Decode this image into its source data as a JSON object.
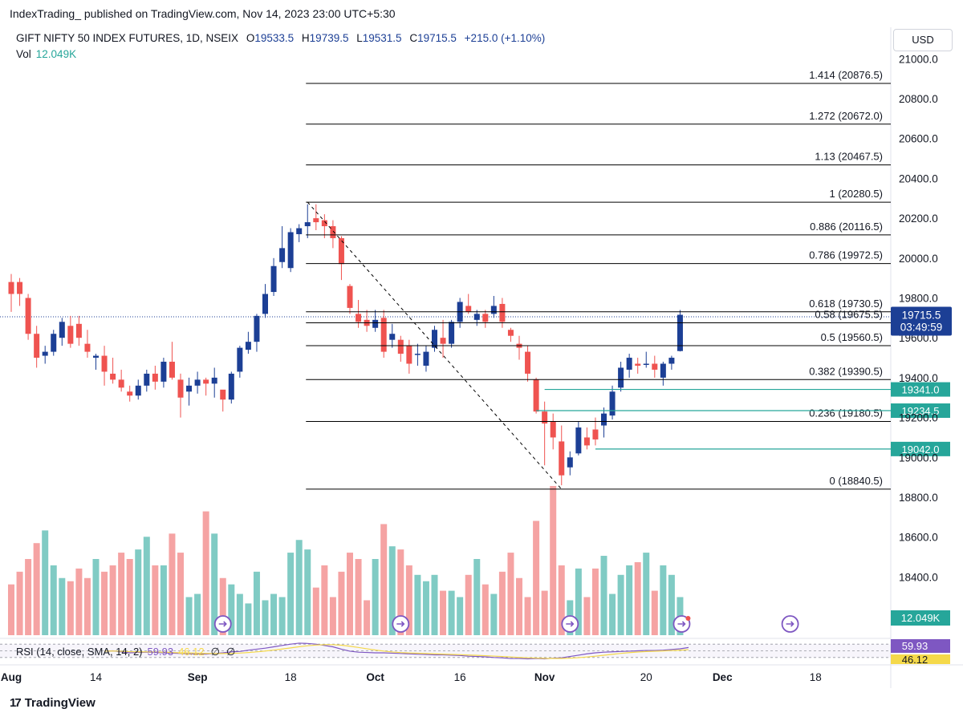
{
  "header": {
    "attribution": "IndexTrading_ published on TradingView.com, Nov 14, 2023 23:00 UTC+5:30"
  },
  "legend": {
    "title": "GIFT NIFTY 50 INDEX FUTURES, 1D, NSEIX",
    "o_label": "O",
    "o_value": "19533.5",
    "h_label": "H",
    "h_value": "19739.5",
    "l_label": "L",
    "l_value": "19531.5",
    "c_label": "C",
    "c_value": "19715.5",
    "change": "+215.0 (+1.10%)",
    "vol_label": "Vol",
    "vol_value": "12.049K"
  },
  "rsi_legend": {
    "label": "RSI (14, close, SMA, 14, 2)",
    "rsi_value": "59.93",
    "sma_value": "46.12",
    "empty1": "∅",
    "empty2": "∅"
  },
  "currency": "USD",
  "footer": {
    "logo_glyph": "17",
    "brand": "TradingView"
  },
  "colors": {
    "up": "#1c3f95",
    "down": "#ef5350",
    "vol_up": "#80cbc4",
    "vol_down": "#f5a3a3",
    "fib_line": "#000000",
    "level_line": "#26a69a",
    "rsi_line": "#7e57c2",
    "rsi_sma": "#f5d94a"
  },
  "chart_data": {
    "type": "candlestick",
    "title": "GIFT NIFTY 50 INDEX FUTURES, 1D, NSEIX",
    "ylim": [
      18250,
      21150
    ],
    "y_ticks": [
      21000,
      20800,
      20600,
      20400,
      20200,
      20000,
      19800,
      19600,
      19400,
      19200,
      19000,
      18800,
      18600,
      18400
    ],
    "y_tick_labels": [
      "21000.0",
      "20800.0",
      "20600.0",
      "20400.0",
      "20200.0",
      "20000.0",
      "19800.0",
      "19600.0",
      "19400.0",
      "19200.0",
      "19000.0",
      "18800.0",
      "18600.0",
      "18400.0"
    ],
    "x_tick_labels": [
      "Aug",
      "14",
      "Sep",
      "18",
      "Oct",
      "16",
      "Nov",
      "20",
      "Dec",
      "18"
    ],
    "x_tick_bars": [
      0,
      10,
      22,
      33,
      43,
      53,
      63,
      75,
      84,
      95
    ],
    "bold_x_ticks": [
      "Aug",
      "Sep",
      "Oct",
      "Nov",
      "Dec"
    ],
    "candles": [
      [
        19880,
        19920,
        19730,
        19820,
        16
      ],
      [
        19880,
        19900,
        19760,
        19820,
        20
      ],
      [
        19800,
        19820,
        19590,
        19620,
        24
      ],
      [
        19620,
        19660,
        19450,
        19500,
        29
      ],
      [
        19510,
        19560,
        19470,
        19530,
        33
      ],
      [
        19530,
        19640,
        19510,
        19620,
        22
      ],
      [
        19600,
        19700,
        19560,
        19680,
        18
      ],
      [
        19660,
        19710,
        19550,
        19570,
        17
      ],
      [
        19670,
        19710,
        19560,
        19600,
        21
      ],
      [
        19570,
        19640,
        19500,
        19530,
        18
      ],
      [
        19500,
        19520,
        19440,
        19510,
        24
      ],
      [
        19510,
        19560,
        19360,
        19430,
        20
      ],
      [
        19420,
        19500,
        19370,
        19390,
        22
      ],
      [
        19390,
        19440,
        19330,
        19350,
        26
      ],
      [
        19330,
        19360,
        19280,
        19310,
        24
      ],
      [
        19310,
        19390,
        19290,
        19360,
        27
      ],
      [
        19360,
        19440,
        19330,
        19420,
        31
      ],
      [
        19420,
        19460,
        19340,
        19380,
        22
      ],
      [
        19380,
        19500,
        19350,
        19480,
        22
      ],
      [
        19480,
        19580,
        19390,
        19400,
        32
      ],
      [
        19390,
        19420,
        19200,
        19300,
        26
      ],
      [
        19330,
        19400,
        19260,
        19360,
        12
      ],
      [
        19360,
        19430,
        19320,
        19390,
        13
      ],
      [
        19390,
        19400,
        19310,
        19370,
        39
      ],
      [
        19370,
        19450,
        19300,
        19400,
        32
      ],
      [
        19340,
        19320,
        19230,
        19290,
        18
      ],
      [
        19290,
        19430,
        19270,
        19420,
        16
      ],
      [
        19430,
        19560,
        19400,
        19550,
        13
      ],
      [
        19540,
        19630,
        19520,
        19580,
        10
      ],
      [
        19580,
        19720,
        19530,
        19710,
        20
      ],
      [
        19720,
        19870,
        19700,
        19820,
        11
      ],
      [
        19830,
        20000,
        19810,
        19960,
        13
      ],
      [
        19980,
        20160,
        19950,
        20050,
        12
      ],
      [
        19950,
        20150,
        19930,
        20130,
        26
      ],
      [
        20120,
        20170,
        20080,
        20150,
        30
      ],
      [
        20160,
        20270,
        20100,
        20180,
        27
      ],
      [
        20200,
        20270,
        20140,
        20180,
        15
      ],
      [
        20190,
        20220,
        20100,
        20160,
        22
      ],
      [
        20160,
        20190,
        20050,
        20100,
        12
      ],
      [
        20100,
        20110,
        19890,
        19970,
        20
      ],
      [
        19860,
        19870,
        19720,
        19750,
        26
      ],
      [
        19720,
        19790,
        19650,
        19680,
        24
      ],
      [
        19690,
        19740,
        19630,
        19660,
        11
      ],
      [
        19650,
        19740,
        19630,
        19690,
        24
      ],
      [
        19700,
        19740,
        19500,
        19530,
        35
      ],
      [
        19590,
        19670,
        19550,
        19620,
        28
      ],
      [
        19590,
        19610,
        19480,
        19520,
        27
      ],
      [
        19560,
        19590,
        19420,
        19470,
        22
      ],
      [
        19520,
        19570,
        19460,
        19520,
        19
      ],
      [
        19460,
        19560,
        19430,
        19530,
        17
      ],
      [
        19550,
        19660,
        19530,
        19640,
        19
      ],
      [
        19600,
        19690,
        19500,
        19570,
        14
      ],
      [
        19570,
        19690,
        19550,
        19680,
        14
      ],
      [
        19680,
        19800,
        19650,
        19780,
        12
      ],
      [
        19760,
        19820,
        19720,
        19730,
        19
      ],
      [
        19690,
        19740,
        19660,
        19720,
        24
      ],
      [
        19720,
        19740,
        19650,
        19680,
        16
      ],
      [
        19720,
        19810,
        19700,
        19760,
        13
      ],
      [
        19770,
        19800,
        19650,
        19680,
        20
      ],
      [
        19640,
        19650,
        19580,
        19610,
        26
      ],
      [
        19570,
        19610,
        19490,
        19550,
        18
      ],
      [
        19530,
        19560,
        19380,
        19420,
        12
      ],
      [
        19390,
        19400,
        19220,
        19230,
        36
      ],
      [
        19230,
        19280,
        18960,
        19170,
        14
      ],
      [
        19180,
        19220,
        19040,
        19100,
        47
      ],
      [
        19080,
        19160,
        18860,
        18910,
        22
      ],
      [
        18950,
        19030,
        18910,
        19000,
        11
      ],
      [
        19020,
        19180,
        19010,
        19150,
        21
      ],
      [
        19100,
        19150,
        19040,
        19060,
        12
      ],
      [
        19140,
        19200,
        19060,
        19090,
        21
      ],
      [
        19160,
        19250,
        19100,
        19220,
        25
      ],
      [
        19210,
        19360,
        19190,
        19330,
        13
      ],
      [
        19350,
        19480,
        19330,
        19450,
        19
      ],
      [
        19440,
        19520,
        19400,
        19500,
        22
      ],
      [
        19470,
        19500,
        19420,
        19460,
        23
      ],
      [
        19470,
        19530,
        19450,
        19470,
        26
      ],
      [
        19470,
        19510,
        19400,
        19440,
        14
      ],
      [
        19400,
        19480,
        19360,
        19470,
        22
      ],
      [
        19470,
        19510,
        19440,
        19500,
        19
      ],
      [
        19533.5,
        19739.5,
        19531.5,
        19715.5,
        12
      ]
    ],
    "fib_levels": [
      {
        "ratio_label": "1.414 (20876.5)",
        "price": 20876.5
      },
      {
        "ratio_label": "1.272 (20672.0)",
        "price": 20672.0
      },
      {
        "ratio_label": "1.13 (20467.5)",
        "price": 20467.5
      },
      {
        "ratio_label": "1 (20280.5)",
        "price": 20280.5
      },
      {
        "ratio_label": "0.886 (20116.5)",
        "price": 20116.5
      },
      {
        "ratio_label": "0.786 (19972.5)",
        "price": 19972.5
      },
      {
        "ratio_label": "0.618 (19730.5)",
        "price": 19730.5
      },
      {
        "ratio_label": "0.58 (19675.5)",
        "price": 19675.5
      },
      {
        "ratio_label": "0.5 (19560.5)",
        "price": 19560.5
      },
      {
        "ratio_label": "0.382 (19390.5)",
        "price": 19390.5
      },
      {
        "ratio_label": "0.236 (19180.5)",
        "price": 19180.5
      },
      {
        "ratio_label": "0 (18840.5)",
        "price": 18840.5
      }
    ],
    "fib_start_bar": 35,
    "trend_line": {
      "from_bar": 35,
      "from_price": 20280.5,
      "to_bar": 65,
      "to_price": 18840.5
    },
    "price_levels": [
      {
        "label": "19341.0",
        "price": 19341.0,
        "from_bar": 63
      },
      {
        "label": "19234.5",
        "price": 19234.5,
        "from_bar": 62
      },
      {
        "label": "19042.0",
        "price": 19042.0,
        "from_bar": 69
      }
    ],
    "current_price": {
      "label": "19715.5",
      "countdown": "03:49:59",
      "price": 19715.5
    },
    "volume_badge": "12.049K",
    "event_markers_bars": [
      25,
      46,
      66
    ],
    "event_marker_latest_bar": 79,
    "event_marker_future_bar": 92,
    "rsi": {
      "levels": [
        70,
        50,
        30
      ],
      "value": 59.93,
      "sma": 46.12,
      "series": [
        49,
        50,
        47,
        44,
        45,
        46,
        45,
        44,
        43,
        42,
        41,
        41,
        40,
        42,
        44,
        47,
        48,
        52,
        55,
        58,
        62,
        66,
        70,
        73,
        72,
        70,
        66,
        62,
        55,
        49,
        46,
        45,
        44,
        44,
        43,
        42,
        41,
        40,
        39,
        38,
        38,
        37,
        36,
        34,
        33,
        32,
        30,
        29,
        27,
        27,
        26,
        27,
        26,
        28,
        29,
        33,
        37,
        41,
        44,
        46,
        47,
        48,
        49,
        50,
        51,
        51,
        52,
        54,
        56,
        59.93
      ]
    }
  }
}
